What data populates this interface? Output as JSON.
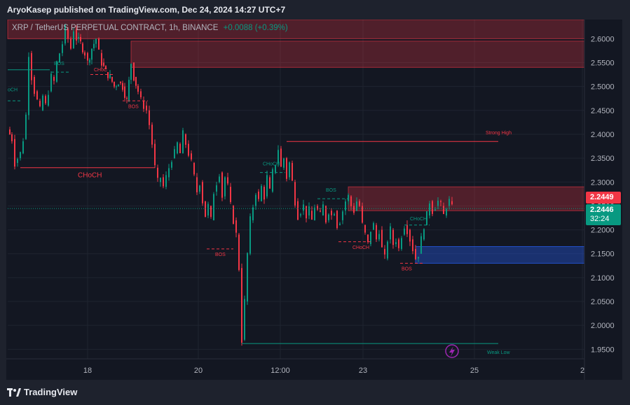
{
  "header": {
    "published": "AryoKasep published on TradingView.com, Dec 24, 2024 14:27 UTC+7"
  },
  "legend": {
    "symbol": "XRP / TetherUS PERPETUAL CONTRACT, 1h, BINANCE",
    "change": "+0.0088 (+0.39%)"
  },
  "price_tags": {
    "last": "2.2449",
    "current": "2.2446",
    "countdown": "32:24"
  },
  "footer": {
    "brand": "TradingView"
  },
  "colors": {
    "up": "#089981",
    "down": "#f23645",
    "background": "#131722",
    "supply_zone": "#f23645",
    "demand_zone": "#2962ff"
  },
  "chart_data": {
    "type": "candlestick",
    "title": "XRP / TetherUS PERPETUAL CONTRACT, 1h, BINANCE",
    "ylim": [
      1.93,
      2.64
    ],
    "y_ticks": [
      "2.6000",
      "2.5500",
      "2.5000",
      "2.4500",
      "2.4000",
      "2.3500",
      "2.3000",
      "2.2500",
      "2.2000",
      "2.1500",
      "2.1000",
      "2.0500",
      "2.0000",
      "1.9500"
    ],
    "x_ticks": [
      "18",
      "20",
      "12:00",
      "23",
      "25",
      "2"
    ],
    "grid": true,
    "legend_position": "top-left",
    "path_points": [
      [
        0,
        2.41
      ],
      [
        6,
        2.39
      ],
      [
        10,
        2.34
      ],
      [
        14,
        2.35
      ],
      [
        18,
        2.36
      ],
      [
        22,
        2.39
      ],
      [
        26,
        2.44
      ],
      [
        30,
        2.57
      ],
      [
        34,
        2.52
      ],
      [
        38,
        2.49
      ],
      [
        42,
        2.47
      ],
      [
        46,
        2.45
      ],
      [
        50,
        2.48
      ],
      [
        54,
        2.46
      ],
      [
        58,
        2.49
      ],
      [
        62,
        2.52
      ],
      [
        66,
        2.51
      ],
      [
        70,
        2.55
      ],
      [
        74,
        2.57
      ],
      [
        78,
        2.59
      ],
      [
        82,
        2.62
      ],
      [
        86,
        2.6
      ],
      [
        90,
        2.58
      ],
      [
        94,
        2.62
      ],
      [
        98,
        2.6
      ],
      [
        104,
        2.59
      ],
      [
        110,
        2.57
      ],
      [
        114,
        2.55
      ],
      [
        120,
        2.58
      ],
      [
        126,
        2.6
      ],
      [
        130,
        2.57
      ],
      [
        134,
        2.55
      ],
      [
        140,
        2.53
      ],
      [
        146,
        2.52
      ],
      [
        152,
        2.5
      ],
      [
        158,
        2.51
      ],
      [
        164,
        2.5
      ],
      [
        170,
        2.47
      ],
      [
        176,
        2.55
      ],
      [
        180,
        2.52
      ],
      [
        186,
        2.49
      ],
      [
        190,
        2.47
      ],
      [
        194,
        2.46
      ],
      [
        198,
        2.45
      ],
      [
        202,
        2.42
      ],
      [
        206,
        2.38
      ],
      [
        210,
        2.33
      ],
      [
        214,
        2.3
      ],
      [
        218,
        2.31
      ],
      [
        222,
        2.29
      ],
      [
        226,
        2.31
      ],
      [
        230,
        2.33
      ],
      [
        234,
        2.35
      ],
      [
        238,
        2.36
      ],
      [
        242,
        2.38
      ],
      [
        246,
        2.36
      ],
      [
        250,
        2.4
      ],
      [
        254,
        2.38
      ],
      [
        258,
        2.36
      ],
      [
        262,
        2.34
      ],
      [
        266,
        2.31
      ],
      [
        270,
        2.28
      ],
      [
        274,
        2.3
      ],
      [
        278,
        2.26
      ],
      [
        282,
        2.23
      ],
      [
        286,
        2.25
      ],
      [
        290,
        2.22
      ],
      [
        294,
        2.28
      ],
      [
        298,
        2.3
      ],
      [
        302,
        2.32
      ],
      [
        306,
        2.27
      ],
      [
        310,
        2.31
      ],
      [
        314,
        2.29
      ],
      [
        318,
        2.25
      ],
      [
        322,
        2.22
      ],
      [
        326,
        2.19
      ],
      [
        330,
        2.12
      ],
      [
        334,
        1.97
      ],
      [
        338,
        2.05
      ],
      [
        342,
        2.15
      ],
      [
        346,
        2.22
      ],
      [
        350,
        2.25
      ],
      [
        354,
        2.28
      ],
      [
        358,
        2.26
      ],
      [
        362,
        2.29
      ],
      [
        366,
        2.27
      ],
      [
        370,
        2.31
      ],
      [
        374,
        2.28
      ],
      [
        378,
        2.32
      ],
      [
        382,
        2.34
      ],
      [
        386,
        2.37
      ],
      [
        390,
        2.33
      ],
      [
        394,
        2.35
      ],
      [
        398,
        2.31
      ],
      [
        402,
        2.34
      ],
      [
        406,
        2.3
      ],
      [
        410,
        2.26
      ],
      [
        414,
        2.23
      ],
      [
        418,
        2.24
      ],
      [
        422,
        2.25
      ],
      [
        426,
        2.23
      ],
      [
        430,
        2.24
      ],
      [
        434,
        2.22
      ],
      [
        438,
        2.25
      ],
      [
        442,
        2.24
      ],
      [
        446,
        2.23
      ],
      [
        450,
        2.25
      ],
      [
        454,
        2.22
      ],
      [
        458,
        2.24
      ],
      [
        462,
        2.23
      ],
      [
        466,
        2.24
      ],
      [
        470,
        2.21
      ],
      [
        474,
        2.22
      ],
      [
        478,
        2.24
      ],
      [
        482,
        2.26
      ],
      [
        486,
        2.27
      ],
      [
        490,
        2.25
      ],
      [
        494,
        2.24
      ],
      [
        498,
        2.26
      ],
      [
        502,
        2.25
      ],
      [
        506,
        2.21
      ],
      [
        510,
        2.19
      ],
      [
        514,
        2.17
      ],
      [
        518,
        2.2
      ],
      [
        522,
        2.21
      ],
      [
        526,
        2.18
      ],
      [
        530,
        2.2
      ],
      [
        534,
        2.16
      ],
      [
        538,
        2.14
      ],
      [
        542,
        2.18
      ],
      [
        546,
        2.2
      ],
      [
        550,
        2.17
      ],
      [
        554,
        2.18
      ],
      [
        558,
        2.16
      ],
      [
        562,
        2.19
      ],
      [
        566,
        2.21
      ],
      [
        570,
        2.2
      ],
      [
        574,
        2.18
      ],
      [
        578,
        2.16
      ],
      [
        582,
        2.14
      ],
      [
        586,
        2.15
      ],
      [
        590,
        2.18
      ],
      [
        594,
        2.21
      ],
      [
        598,
        2.23
      ],
      [
        602,
        2.26
      ],
      [
        606,
        2.24
      ],
      [
        610,
        2.25
      ],
      [
        614,
        2.26
      ],
      [
        618,
        2.25
      ],
      [
        622,
        2.23
      ],
      [
        626,
        2.25
      ],
      [
        630,
        2.26
      ],
      [
        634,
        2.245
      ]
    ],
    "last_price": 2.2446,
    "zones": [
      {
        "type": "supply",
        "y_top": 2.64,
        "y_bottom": 2.6,
        "x_start": 0,
        "x_end": 825
      },
      {
        "type": "supply",
        "y_top": 2.595,
        "y_bottom": 2.54,
        "x_start": 176,
        "x_end": 825
      },
      {
        "type": "supply",
        "y_top": 2.29,
        "y_bottom": 2.24,
        "x_start": 486,
        "x_end": 825
      },
      {
        "type": "demand",
        "y_top": 2.165,
        "y_bottom": 2.13,
        "x_start": 582,
        "x_end": 825
      }
    ],
    "levels": [
      {
        "y": 2.385,
        "x_start": 398,
        "x_end": 700,
        "color": "#f23645",
        "dashed": false
      },
      {
        "y": 1.962,
        "x_start": 334,
        "x_end": 700,
        "color": "#089981",
        "dashed": false
      },
      {
        "y": 2.33,
        "x_start": 18,
        "x_end": 210,
        "color": "#f23645",
        "dashed": false
      },
      {
        "y": 2.535,
        "x_start": 0,
        "x_end": 60,
        "color": "#089981",
        "dashed": false
      },
      {
        "y": 2.47,
        "x_start": 0,
        "x_end": 20,
        "color": "#089981",
        "dashed": true
      },
      {
        "y": 2.53,
        "x_start": 62,
        "x_end": 90,
        "color": "#089981",
        "dashed": true
      },
      {
        "y": 2.525,
        "x_start": 118,
        "x_end": 150,
        "color": "#f23645",
        "dashed": true
      },
      {
        "y": 2.47,
        "x_start": 164,
        "x_end": 200,
        "color": "#f23645",
        "dashed": true
      },
      {
        "y": 2.16,
        "x_start": 284,
        "x_end": 322,
        "color": "#f23645",
        "dashed": true
      },
      {
        "y": 2.32,
        "x_start": 360,
        "x_end": 396,
        "color": "#089981",
        "dashed": true
      },
      {
        "y": 2.265,
        "x_start": 442,
        "x_end": 486,
        "color": "#089981",
        "dashed": true
      },
      {
        "y": 2.175,
        "x_start": 472,
        "x_end": 520,
        "color": "#f23645",
        "dashed": true
      },
      {
        "y": 2.13,
        "x_start": 560,
        "x_end": 592,
        "color": "#f23645",
        "dashed": true
      },
      {
        "y": 2.21,
        "x_start": 566,
        "x_end": 602,
        "color": "#089981",
        "dashed": true
      }
    ],
    "annotations": [
      {
        "text": "BOS",
        "color": "#089981",
        "x": 66,
        "y": 2.545
      },
      {
        "text": "CHoC",
        "color": "#f23645",
        "x": 123,
        "y": 2.532
      },
      {
        "text": "BOS",
        "color": "#f23645",
        "x": 172,
        "y": 2.455
      },
      {
        "text": "oCH",
        "color": "#089981",
        "x": 0,
        "y": 2.49
      },
      {
        "text": "CHoCH",
        "color": "#f23645",
        "x": 100,
        "y": 2.31
      },
      {
        "text": "Strong High",
        "color": "#f23645",
        "x": 682,
        "y": 2.4
      },
      {
        "text": "BOS",
        "color": "#f23645",
        "x": 296,
        "y": 2.145
      },
      {
        "text": "CHoCH",
        "color": "#089981",
        "x": 364,
        "y": 2.335
      },
      {
        "text": "BOS",
        "color": "#089981",
        "x": 454,
        "y": 2.28
      },
      {
        "text": "CHoCH",
        "color": "#f23645",
        "x": 492,
        "y": 2.16
      },
      {
        "text": "BOS",
        "color": "#f23645",
        "x": 562,
        "y": 2.115
      },
      {
        "text": "CHoCH",
        "color": "#089981",
        "x": 574,
        "y": 2.22
      },
      {
        "text": "Weak Low",
        "color": "#089981",
        "x": 684,
        "y": 1.94
      }
    ]
  }
}
